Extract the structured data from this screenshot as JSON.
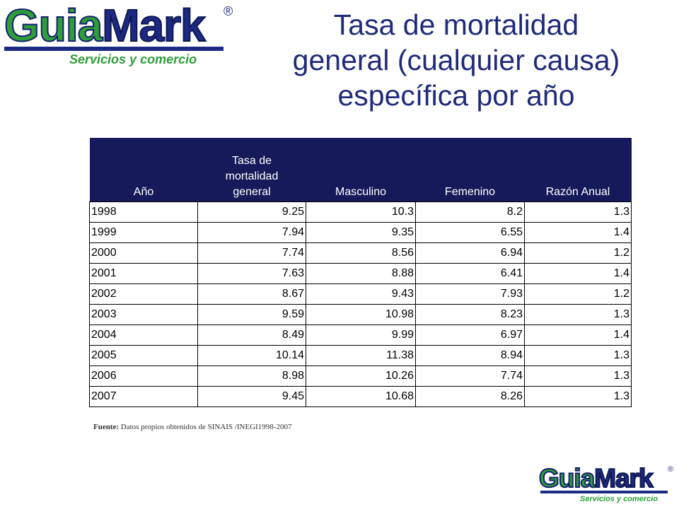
{
  "logo": {
    "part1": "Guia",
    "part2": "Mark",
    "registered": "®",
    "tagline": "Servicios y comercio"
  },
  "title": {
    "line1": "Tasa de mortalidad",
    "line2": "general (cualquier causa)",
    "line3": "específica por año"
  },
  "table": {
    "headers": {
      "year": "Año",
      "rate_line1": "Tasa de",
      "rate_line2": "mortalidad",
      "rate_line3": "general",
      "male": "Masculino",
      "female": "Femenino",
      "ratio": "Razón Anual"
    },
    "rows": [
      {
        "year": "1998",
        "rate": "9.25",
        "male": "10.3",
        "female": "8.2",
        "ratio": "1.3"
      },
      {
        "year": "1999",
        "rate": "7.94",
        "male": "9.35",
        "female": "6.55",
        "ratio": "1.4"
      },
      {
        "year": "2000",
        "rate": "7.74",
        "male": "8.56",
        "female": "6.94",
        "ratio": "1.2"
      },
      {
        "year": "2001",
        "rate": "7.63",
        "male": "8.88",
        "female": "6.41",
        "ratio": "1.4"
      },
      {
        "year": "2002",
        "rate": "8.67",
        "male": "9.43",
        "female": "7.93",
        "ratio": "1.2"
      },
      {
        "year": "2003",
        "rate": "9.59",
        "male": "10.98",
        "female": "8.23",
        "ratio": "1.3"
      },
      {
        "year": "2004",
        "rate": "8.49",
        "male": "9.99",
        "female": "6.97",
        "ratio": "1.4"
      },
      {
        "year": "2005",
        "rate": "10.14",
        "male": "11.38",
        "female": "8.94",
        "ratio": "1.3"
      },
      {
        "year": "2006",
        "rate": "8.98",
        "male": "10.26",
        "female": "7.74",
        "ratio": "1.3"
      },
      {
        "year": "2007",
        "rate": "9.45",
        "male": "10.68",
        "female": "8.26",
        "ratio": "1.3"
      }
    ]
  },
  "source": {
    "label": "Fuente:",
    "text": "Datos propios obtenidos de SINAIS /INEGI1998-2007"
  },
  "colors": {
    "title": "#1f2a7a",
    "header_bg": "#161a5a",
    "logo_green": "#2e9e3a",
    "logo_blue": "#1c2a84"
  }
}
